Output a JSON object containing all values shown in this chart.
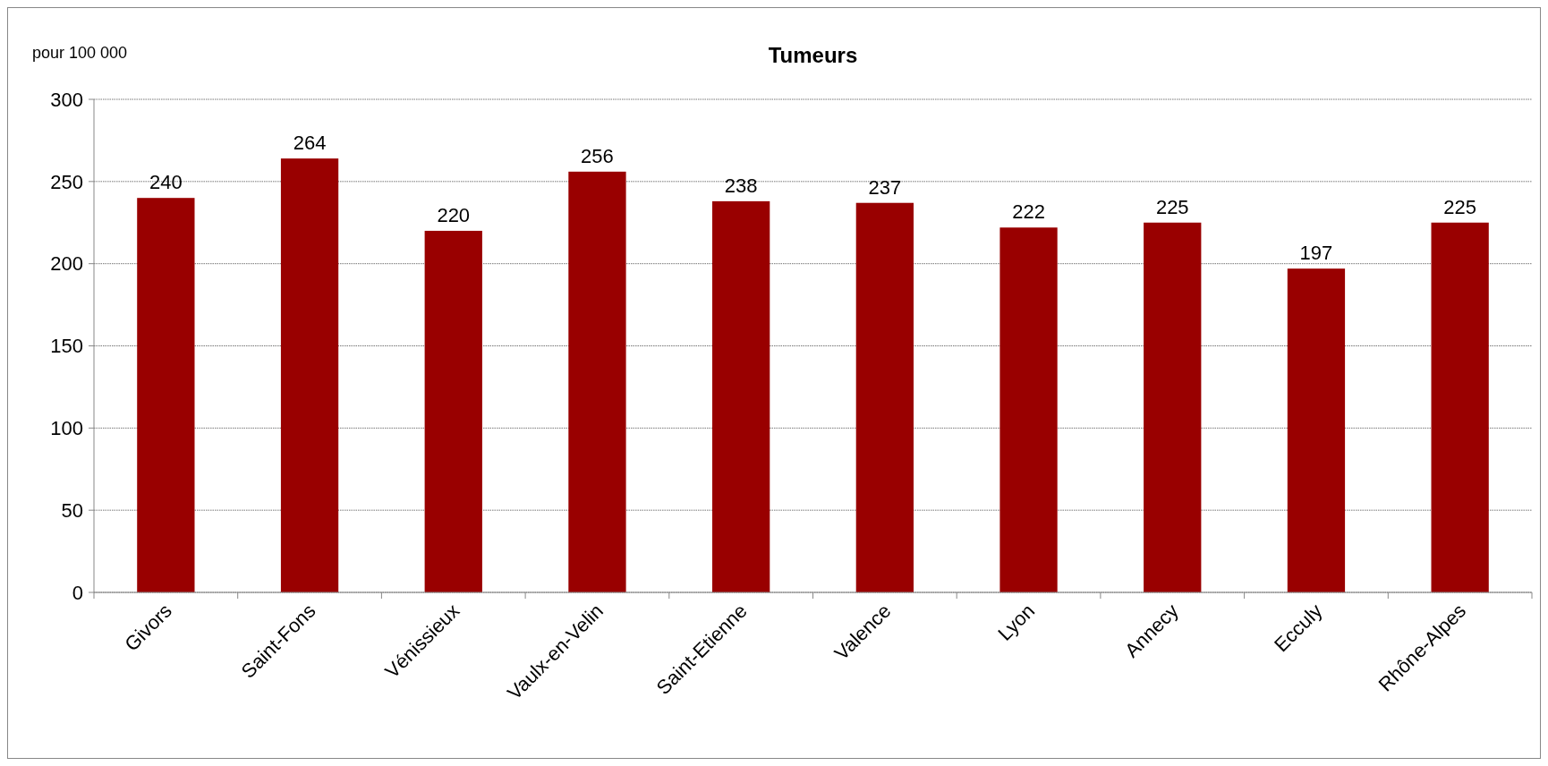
{
  "chart_data": {
    "type": "bar",
    "title": "Tumeurs",
    "ylabel": "pour 100 000",
    "categories": [
      "Givors",
      "Saint-Fons",
      "Vénissieux",
      "Vaulx-en-Velin",
      "Saint-Etienne",
      "Valence",
      "Lyon",
      "Annecy",
      "Ecculy",
      "Rhône-Alpes"
    ],
    "values": [
      240,
      264,
      220,
      256,
      238,
      237,
      222,
      225,
      197,
      225
    ],
    "color": "#990000",
    "ylim": [
      0,
      300
    ],
    "yticks": [
      0,
      50,
      100,
      150,
      200,
      250,
      300
    ],
    "grid": "y",
    "data_labels": true
  }
}
